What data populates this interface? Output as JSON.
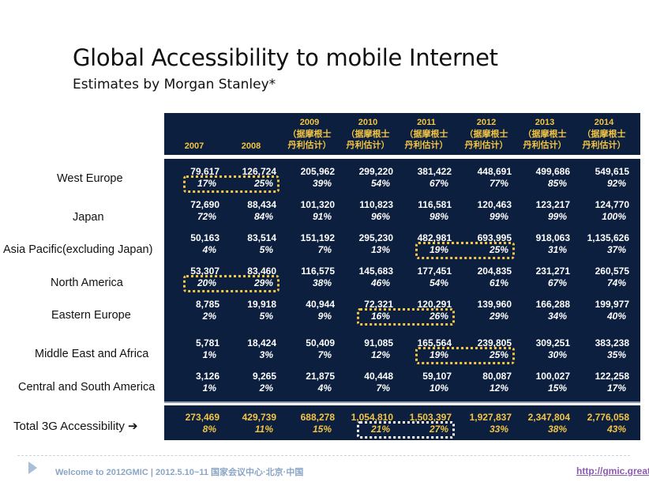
{
  "slide": {
    "title": "Global Accessibility to mobile Internet",
    "subtitle": "Estimates by Morgan Stanley*"
  },
  "table": {
    "columns": [
      {
        "year": "2007",
        "note": ""
      },
      {
        "year": "2008",
        "note": ""
      },
      {
        "year": "2009",
        "note": "（据摩根士丹利估计）"
      },
      {
        "year": "2010",
        "note": "（据摩根士丹利估计）"
      },
      {
        "year": "2011",
        "note": "（据摩根士丹利估计）"
      },
      {
        "year": "2012",
        "note": "（据摩根士丹利估计）"
      },
      {
        "year": "2013",
        "note": "（据摩根士丹利估计）"
      },
      {
        "year": "2014",
        "note": "（据摩根士丹利估计）"
      }
    ],
    "note_line1": "（据摩根士",
    "note_line2": "丹利估计）",
    "rows": [
      {
        "label": "West Europe",
        "values": [
          "79,617",
          "126,724",
          "205,962",
          "299,220",
          "381,422",
          "448,691",
          "499,686",
          "549,615"
        ],
        "pcts": [
          "17%",
          "25%",
          "39%",
          "54%",
          "67%",
          "77%",
          "85%",
          "92%"
        ]
      },
      {
        "label": "Japan",
        "values": [
          "72,690",
          "88,434",
          "101,320",
          "110,823",
          "116,581",
          "120,463",
          "123,217",
          "124,770"
        ],
        "pcts": [
          "72%",
          "84%",
          "91%",
          "96%",
          "98%",
          "99%",
          "99%",
          "100%"
        ]
      },
      {
        "label": "Asia Pacific(excluding Japan)",
        "values": [
          "50,163",
          "83,514",
          "151,192",
          "295,230",
          "482,981",
          "693,995",
          "918,063",
          "1,135,626"
        ],
        "pcts": [
          "4%",
          "5%",
          "7%",
          "13%",
          "19%",
          "25%",
          "31%",
          "37%"
        ]
      },
      {
        "label": "North America",
        "values": [
          "53,307",
          "83,460",
          "116,575",
          "145,683",
          "177,451",
          "204,835",
          "231,271",
          "260,575"
        ],
        "pcts": [
          "20%",
          "29%",
          "38%",
          "46%",
          "54%",
          "61%",
          "67%",
          "74%"
        ]
      },
      {
        "label": "Eastern Europe",
        "values": [
          "8,785",
          "19,918",
          "40,944",
          "72,321",
          "120,291",
          "139,960",
          "166,288",
          "199,977"
        ],
        "pcts": [
          "2%",
          "5%",
          "9%",
          "16%",
          "26%",
          "29%",
          "34%",
          "40%"
        ]
      },
      {
        "label": "Middle East and Africa",
        "values": [
          "5,781",
          "18,424",
          "50,409",
          "91,085",
          "165,564",
          "239,805",
          "309,251",
          "383,238"
        ],
        "pcts": [
          "1%",
          "3%",
          "7%",
          "12%",
          "19%",
          "25%",
          "30%",
          "35%"
        ]
      },
      {
        "label": "Central and South America",
        "values": [
          "3,126",
          "9,265",
          "21,875",
          "40,448",
          "59,107",
          "80,087",
          "100,027",
          "122,258"
        ],
        "pcts": [
          "1%",
          "2%",
          "4%",
          "7%",
          "10%",
          "12%",
          "15%",
          "17%"
        ]
      }
    ],
    "total": {
      "label": "Total 3G  Accessibility ➔",
      "values": [
        "273,469",
        "429,739",
        "688,278",
        "1,054,810",
        "1,503,397",
        "1,927,837",
        "2,347,804",
        "2,776,058"
      ],
      "pcts": [
        "8%",
        "11%",
        "15%",
        "21%",
        "27%",
        "33%",
        "38%",
        "43%"
      ]
    },
    "highlights": [
      {
        "row": 0,
        "cols": [
          0,
          1
        ],
        "color": "#f3c544"
      },
      {
        "row": 2,
        "cols": [
          4,
          5
        ],
        "color": "#f3c544"
      },
      {
        "row": 3,
        "cols": [
          0,
          1
        ],
        "color": "#f3c544"
      },
      {
        "row": 4,
        "cols": [
          3,
          4
        ],
        "color": "#f3c544"
      },
      {
        "row": 5,
        "cols": [
          4,
          5
        ],
        "color": "#f3c544"
      },
      {
        "row": "total",
        "cols": [
          3,
          4
        ],
        "color": "#ffffff"
      }
    ]
  },
  "colors": {
    "table_bg": "#0c1f3f",
    "header_text": "#f3c544",
    "total_text": "#f3c544",
    "highlight": "#f3c544"
  },
  "footer": {
    "text": "Welcome to 2012GMIC | 2012.5.10~11 国家会议中心·北京·中国",
    "link": "http://gmic.great"
  }
}
